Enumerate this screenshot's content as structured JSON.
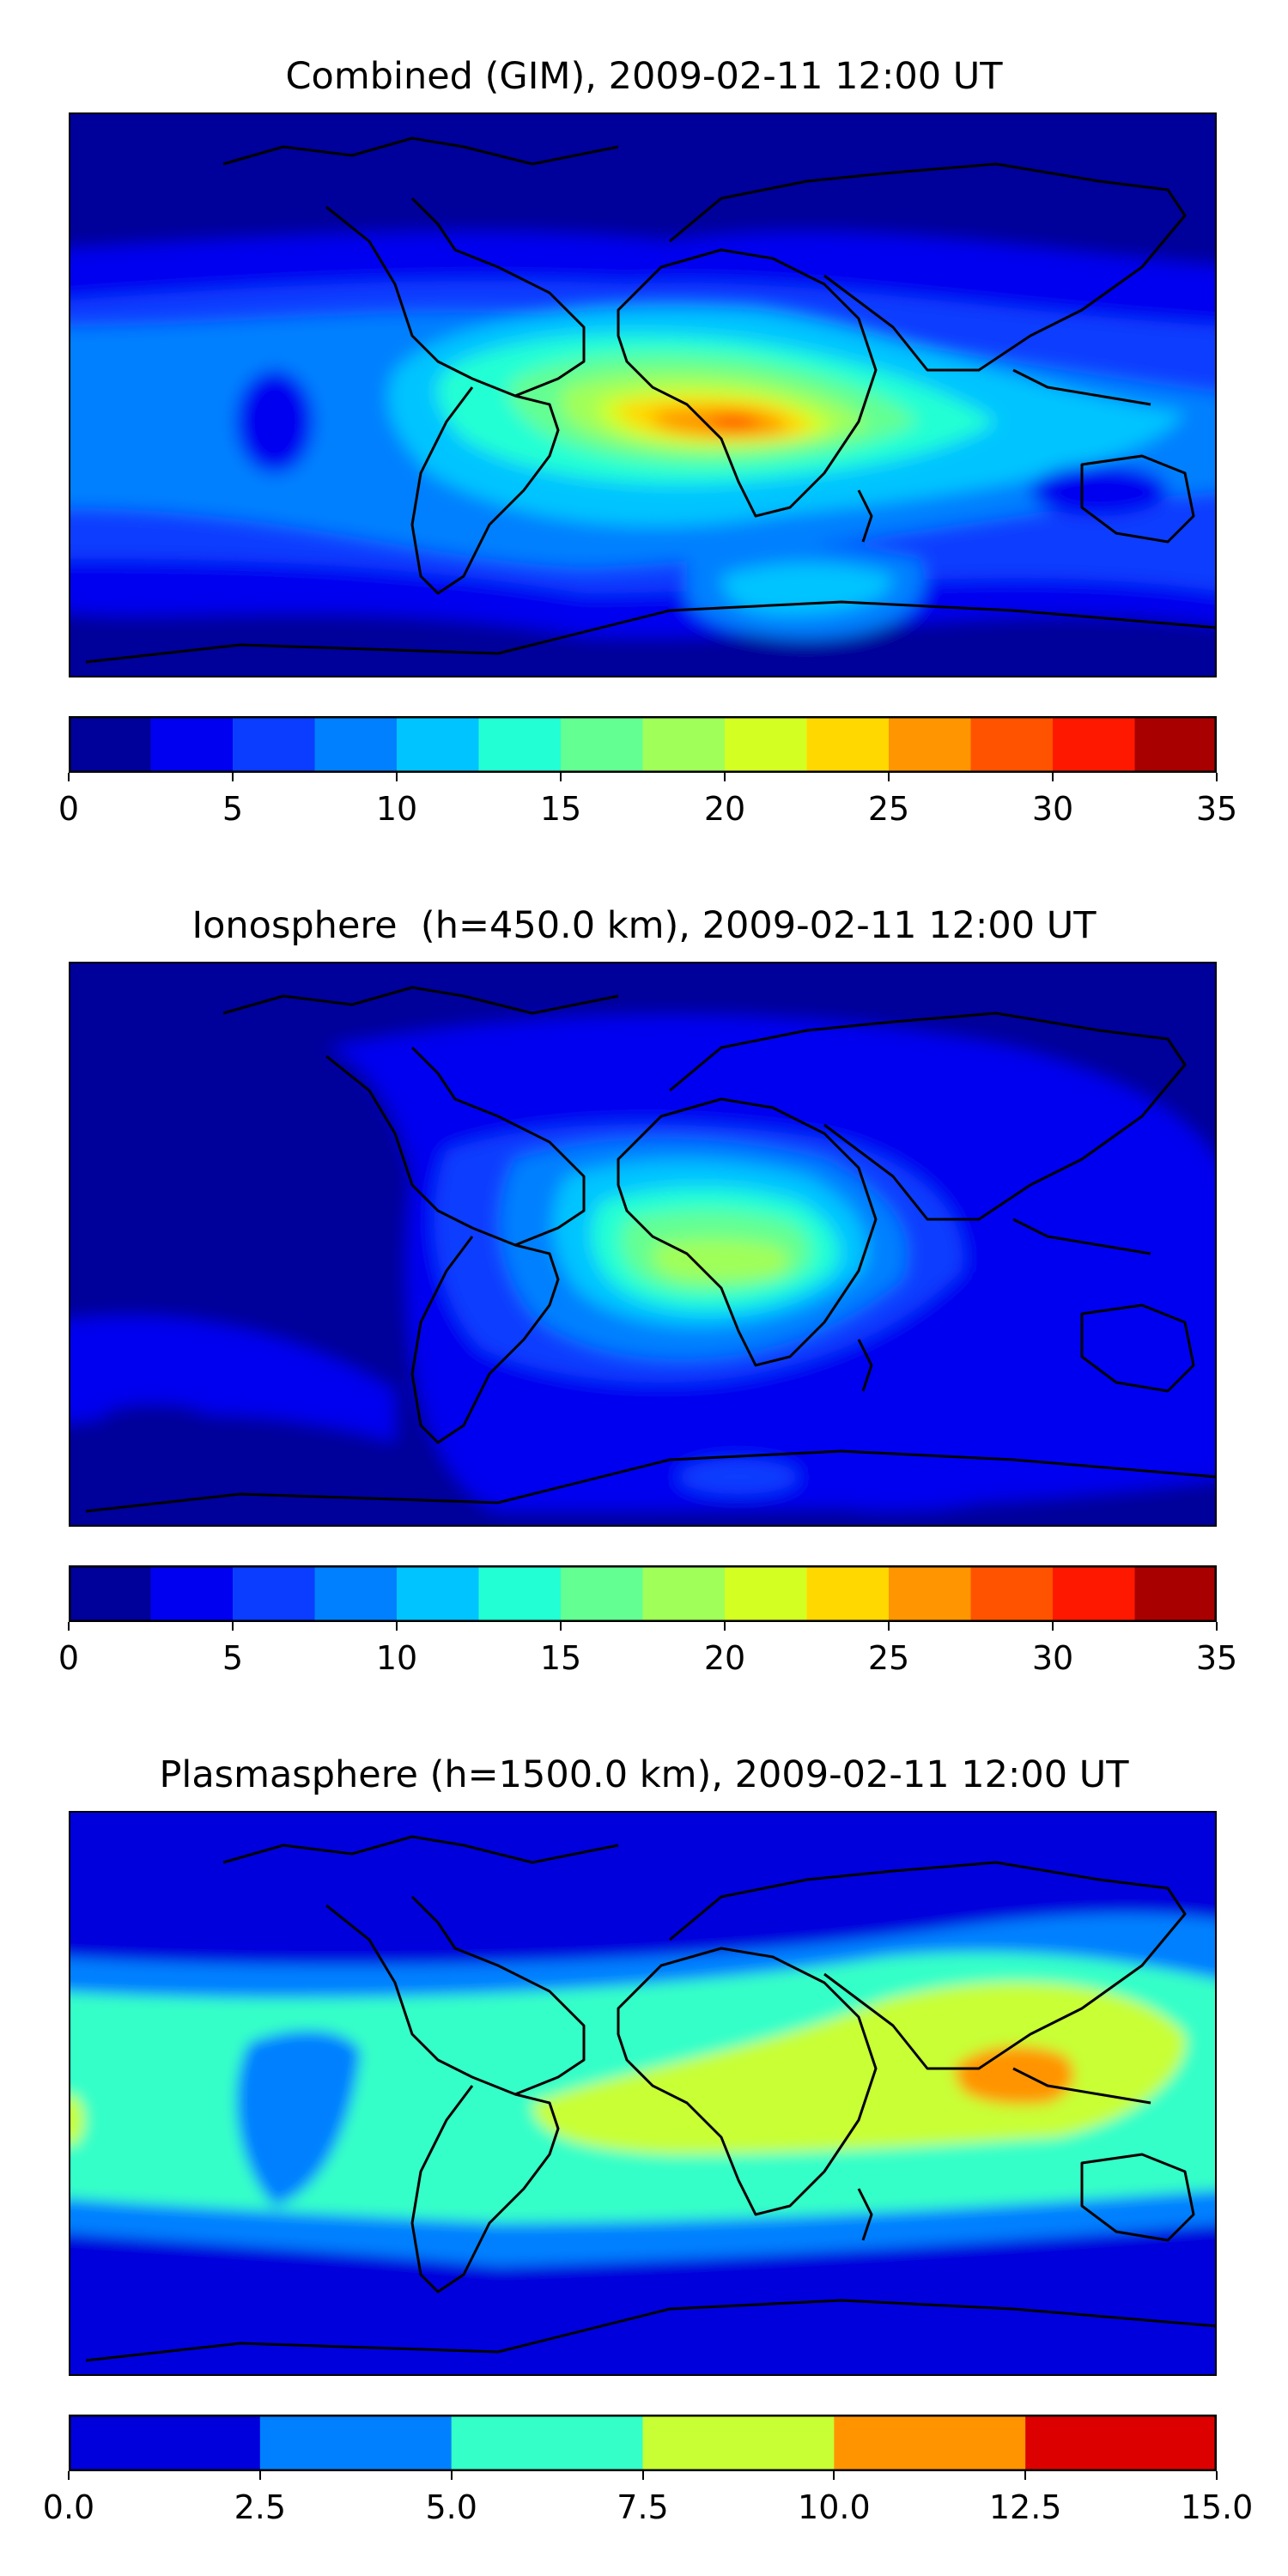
{
  "chart_data": [
    {
      "type": "heatmap",
      "title": "Combined (GIM), 2009-02-11 12:00 UT",
      "xlabel": "",
      "ylabel": "",
      "colorbar": {
        "ticks": [
          "0",
          "5",
          "10",
          "15",
          "20",
          "25",
          "30",
          "35"
        ],
        "range": [
          0,
          35
        ],
        "levels": [
          0,
          2.5,
          5,
          7.5,
          10,
          12.5,
          15,
          17.5,
          20,
          22.5,
          25,
          27.5,
          30,
          32.5,
          35
        ],
        "colors": [
          "#00009a",
          "#0000f0",
          "#0a3dff",
          "#0080ff",
          "#00c4ff",
          "#23ffd4",
          "#64ff92",
          "#a0ff58",
          "#d4ff23",
          "#ffd800",
          "#ff9500",
          "#ff5300",
          "#ff1800",
          "#a80000"
        ]
      },
      "features": [
        {
          "name": "african-maximum",
          "value_range": [
            25,
            30
          ],
          "location": "equatorial Africa"
        },
        {
          "name": "atlantic-belt",
          "value_range": [
            15,
            22.5
          ],
          "location": "tropical Atlantic"
        },
        {
          "name": "polar-minimum",
          "value_range": [
            0,
            2.5
          ],
          "location": "high northern latitudes"
        }
      ],
      "grid": false,
      "legend": "colorbar-below"
    },
    {
      "type": "heatmap",
      "title": "Ionosphere  (h=450.0 km), 2009-02-11 12:00 UT",
      "xlabel": "",
      "ylabel": "",
      "colorbar": {
        "ticks": [
          "0",
          "5",
          "10",
          "15",
          "20",
          "25",
          "30",
          "35"
        ],
        "range": [
          0,
          35
        ],
        "levels": [
          0,
          2.5,
          5,
          7.5,
          10,
          12.5,
          15,
          17.5,
          20,
          22.5,
          25,
          27.5,
          30,
          32.5,
          35
        ],
        "colors": [
          "#00009a",
          "#0000f0",
          "#0a3dff",
          "#0080ff",
          "#00c4ff",
          "#23ffd4",
          "#64ff92",
          "#a0ff58",
          "#d4ff23",
          "#ffd800",
          "#ff9500",
          "#ff5300",
          "#ff1800",
          "#a80000"
        ]
      },
      "features": [
        {
          "name": "african-maximum",
          "value_range": [
            17.5,
            20
          ],
          "location": "central Africa"
        },
        {
          "name": "pacific-minimum",
          "value_range": [
            0,
            2.5
          ],
          "location": "eastern Pacific"
        }
      ],
      "grid": false,
      "legend": "colorbar-below"
    },
    {
      "type": "heatmap",
      "title": "Plasmasphere (h=1500.0 km), 2009-02-11 12:00 UT",
      "xlabel": "",
      "ylabel": "",
      "colorbar": {
        "ticks": [
          "0.0",
          "2.5",
          "5.0",
          "7.5",
          "10.0",
          "12.5",
          "15.0"
        ],
        "range": [
          0,
          15
        ],
        "levels": [
          0,
          2.5,
          5,
          7.5,
          10,
          12.5,
          15
        ],
        "colors": [
          "#0000dc",
          "#0080ff",
          "#34ffc8",
          "#c8ff34",
          "#ff9400",
          "#dc0000"
        ]
      },
      "features": [
        {
          "name": "maritime-continent-maximum",
          "value_range": [
            10,
            12.5
          ],
          "location": "Indonesia"
        },
        {
          "name": "equatorial-belt",
          "value_range": [
            7.5,
            10
          ],
          "location": "Atlantic, Africa, Indian Ocean"
        },
        {
          "name": "polar-minimum",
          "value_range": [
            0,
            2.5
          ],
          "location": "high latitudes"
        }
      ],
      "grid": false,
      "legend": "colorbar-below"
    }
  ]
}
